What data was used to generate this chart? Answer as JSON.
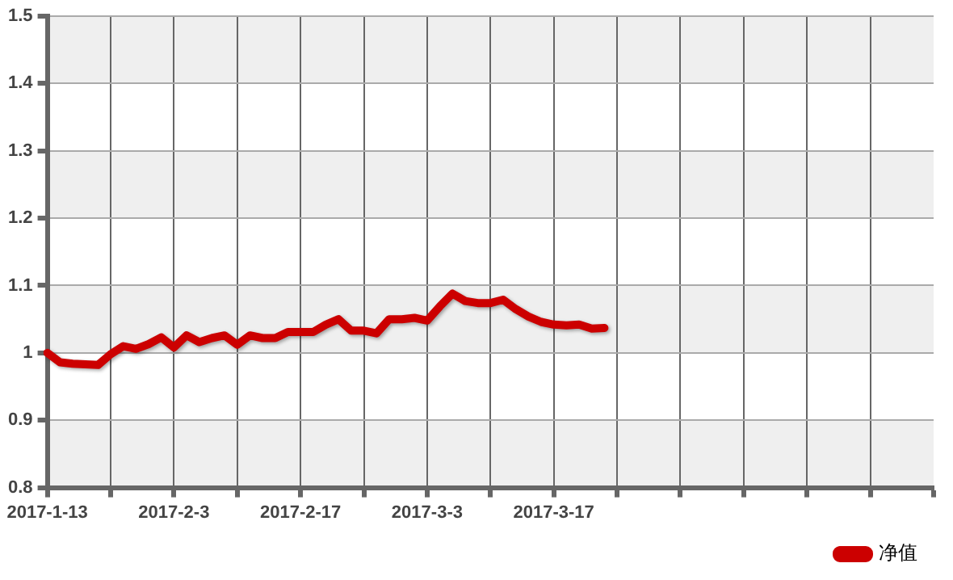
{
  "chart_data": {
    "type": "line",
    "categories": [
      "2017-1-13",
      null,
      null,
      null,
      null,
      null,
      null,
      null,
      null,
      null,
      "2017-2-3",
      null,
      null,
      null,
      null,
      null,
      null,
      null,
      null,
      null,
      "2017-2-17",
      null,
      null,
      null,
      null,
      null,
      null,
      null,
      null,
      null,
      "2017-3-3",
      null,
      null,
      null,
      null,
      null,
      null,
      null,
      null,
      null,
      "2017-3-17",
      null,
      null,
      null,
      null,
      null,
      null,
      null,
      null,
      null,
      null,
      null,
      null,
      null,
      null,
      null,
      null,
      null,
      null,
      null,
      null,
      null,
      null,
      null,
      null,
      null,
      null,
      null,
      null,
      null,
      null
    ],
    "series": [
      {
        "name": "净值",
        "color": "#cc0000",
        "values": [
          1.0,
          0.986,
          0.984,
          0.983,
          0.982,
          0.998,
          1.01,
          1.006,
          1.013,
          1.023,
          1.008,
          1.026,
          1.016,
          1.022,
          1.026,
          1.012,
          1.026,
          1.022,
          1.022,
          1.031,
          1.031,
          1.031,
          1.042,
          1.05,
          1.033,
          1.033,
          1.029,
          1.05,
          1.05,
          1.052,
          1.048,
          1.069,
          1.088,
          1.077,
          1.074,
          1.074,
          1.079,
          1.065,
          1.054,
          1.046,
          1.042,
          1.041,
          1.042,
          1.036,
          1.037,
          null,
          null,
          null,
          null,
          null,
          null,
          null,
          null,
          null,
          null,
          null,
          null,
          null,
          null,
          null,
          null,
          null,
          null,
          null,
          null,
          null,
          null,
          null,
          null,
          null,
          null
        ]
      }
    ],
    "ylim": [
      0.8,
      1.5
    ],
    "yticks": [
      0.8,
      0.9,
      {
        "value": 1.0,
        "label": "1"
      },
      1.1,
      1.2,
      1.3,
      1.4,
      1.5
    ],
    "grid": true,
    "legend": "bottom right",
    "marker": "none",
    "line_style": "solid"
  }
}
